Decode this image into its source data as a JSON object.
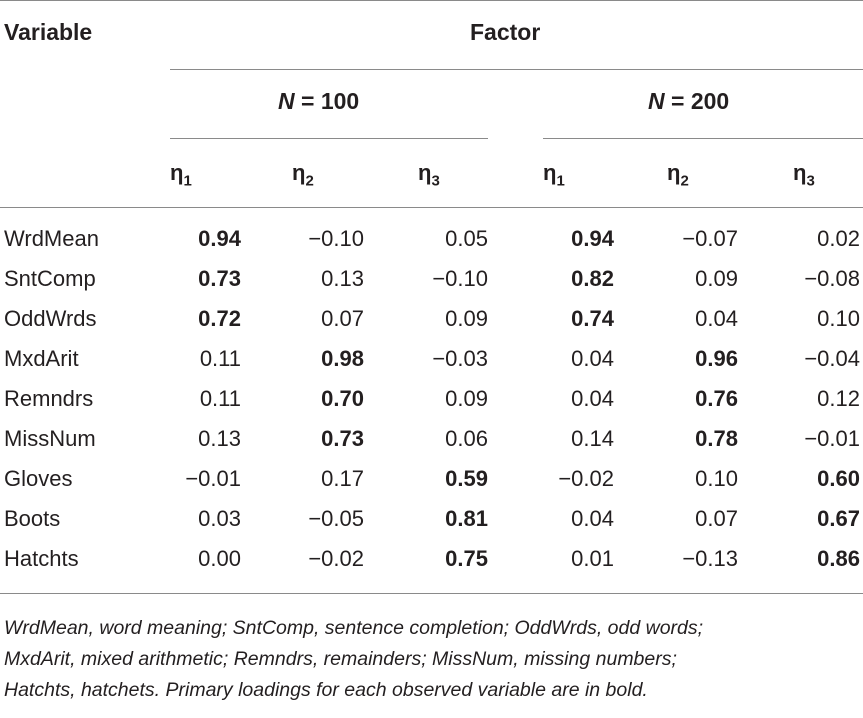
{
  "table": {
    "variable_header": "Variable",
    "factor_header": "Factor",
    "groups": [
      {
        "label_n": "N",
        "label_eq": " = 100"
      },
      {
        "label_n": "N",
        "label_eq": " = 200"
      }
    ],
    "eta_symbol": "η",
    "eta_labels": [
      "1",
      "2",
      "3",
      "1",
      "2",
      "3"
    ],
    "rows": [
      {
        "name": "WrdMean",
        "values": [
          "0.94",
          "−0.10",
          "0.05",
          "0.94",
          "−0.07",
          "0.02"
        ],
        "bold": [
          true,
          false,
          false,
          true,
          false,
          false
        ]
      },
      {
        "name": "SntComp",
        "values": [
          "0.73",
          "0.13",
          "−0.10",
          "0.82",
          "0.09",
          "−0.08"
        ],
        "bold": [
          true,
          false,
          false,
          true,
          false,
          false
        ]
      },
      {
        "name": "OddWrds",
        "values": [
          "0.72",
          "0.07",
          "0.09",
          "0.74",
          "0.04",
          "0.10"
        ],
        "bold": [
          true,
          false,
          false,
          true,
          false,
          false
        ]
      },
      {
        "name": "MxdArit",
        "values": [
          "0.11",
          "0.98",
          "−0.03",
          "0.04",
          "0.96",
          "−0.04"
        ],
        "bold": [
          false,
          true,
          false,
          false,
          true,
          false
        ]
      },
      {
        "name": "Remndrs",
        "values": [
          "0.11",
          "0.70",
          "0.09",
          "0.04",
          "0.76",
          "0.12"
        ],
        "bold": [
          false,
          true,
          false,
          false,
          true,
          false
        ]
      },
      {
        "name": "MissNum",
        "values": [
          "0.13",
          "0.73",
          "0.06",
          "0.14",
          "0.78",
          "−0.01"
        ],
        "bold": [
          false,
          true,
          false,
          false,
          true,
          false
        ]
      },
      {
        "name": "Gloves",
        "values": [
          "−0.01",
          "0.17",
          "0.59",
          "−0.02",
          "0.10",
          "0.60"
        ],
        "bold": [
          false,
          false,
          true,
          false,
          false,
          true
        ]
      },
      {
        "name": "Boots",
        "values": [
          "0.03",
          "−0.05",
          "0.81",
          "0.04",
          "0.07",
          "0.67"
        ],
        "bold": [
          false,
          false,
          true,
          false,
          false,
          true
        ]
      },
      {
        "name": "Hatchts",
        "values": [
          "0.00",
          "−0.02",
          "0.75",
          "0.01",
          "−0.13",
          "0.86"
        ],
        "bold": [
          false,
          false,
          true,
          false,
          false,
          true
        ]
      }
    ]
  },
  "footnote": {
    "lines": [
      "WrdMean, word meaning; SntComp, sentence completion; OddWrds, odd words;",
      "MxdArit, mixed arithmetic; Remndrs, remainders; MissNum, missing numbers;",
      "Hatchts, hatchets. Primary loadings for each observed variable are in bold."
    ]
  }
}
